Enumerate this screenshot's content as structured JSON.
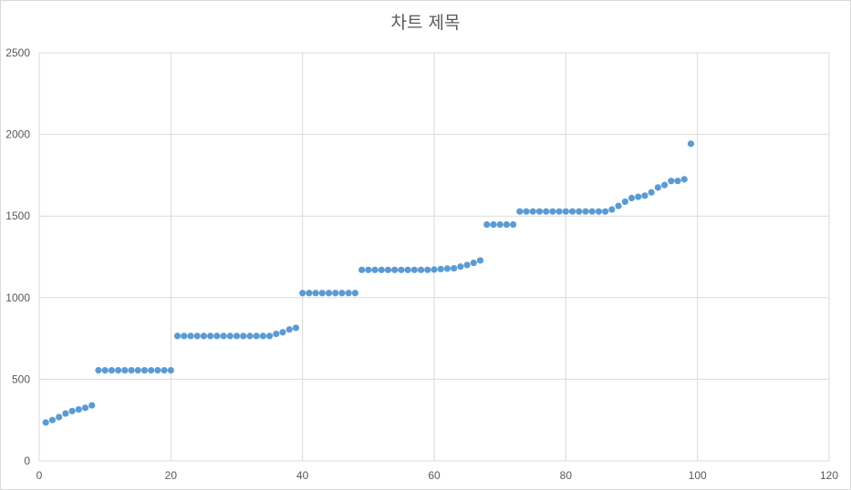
{
  "chart_data": {
    "type": "scatter",
    "title": "차트 제목",
    "xlabel": "",
    "ylabel": "",
    "xlim": [
      0,
      120
    ],
    "ylim": [
      0,
      2500
    ],
    "x_ticks": [
      "0",
      "20",
      "40",
      "60",
      "80",
      "100",
      "120"
    ],
    "y_ticks": [
      "0",
      "500",
      "1000",
      "1500",
      "2000",
      "2500"
    ],
    "grid": true,
    "legend": "none",
    "marker_color": "#5b9bd5",
    "series": [
      {
        "x": [
          1,
          2,
          3,
          4,
          5,
          6,
          7,
          8,
          9,
          10,
          11,
          12,
          13,
          14,
          15,
          16,
          17,
          18,
          19,
          20,
          21,
          22,
          23,
          24,
          25,
          26,
          27,
          28,
          29,
          30,
          31,
          32,
          33,
          34,
          35,
          36,
          37,
          38,
          39,
          40,
          41,
          42,
          43,
          44,
          45,
          46,
          47,
          48,
          49,
          50,
          51,
          52,
          53,
          54,
          55,
          56,
          57,
          58,
          59,
          60,
          61,
          62,
          63,
          64,
          65,
          66,
          67,
          68,
          69,
          70,
          71,
          72,
          73,
          74,
          75,
          76,
          77,
          78,
          79,
          80,
          81,
          82,
          83,
          84,
          85,
          86,
          87,
          88,
          89,
          90,
          91,
          92,
          93,
          94,
          95,
          96,
          97,
          98,
          99
        ],
        "y": [
          235,
          250,
          268,
          290,
          305,
          315,
          325,
          340,
          555,
          555,
          555,
          555,
          555,
          555,
          555,
          555,
          555,
          555,
          555,
          555,
          765,
          765,
          765,
          765,
          765,
          765,
          765,
          765,
          765,
          765,
          765,
          765,
          765,
          765,
          765,
          778,
          788,
          805,
          815,
          1028,
          1028,
          1028,
          1028,
          1028,
          1028,
          1028,
          1028,
          1028,
          1170,
          1170,
          1170,
          1170,
          1170,
          1170,
          1170,
          1170,
          1170,
          1170,
          1170,
          1172,
          1175,
          1178,
          1180,
          1190,
          1200,
          1213,
          1228,
          1448,
          1448,
          1448,
          1448,
          1448,
          1528,
          1528,
          1528,
          1528,
          1528,
          1528,
          1528,
          1528,
          1528,
          1528,
          1528,
          1528,
          1528,
          1528,
          1540,
          1562,
          1588,
          1610,
          1618,
          1625,
          1645,
          1675,
          1690,
          1715,
          1715,
          1725,
          1943
        ]
      }
    ]
  }
}
